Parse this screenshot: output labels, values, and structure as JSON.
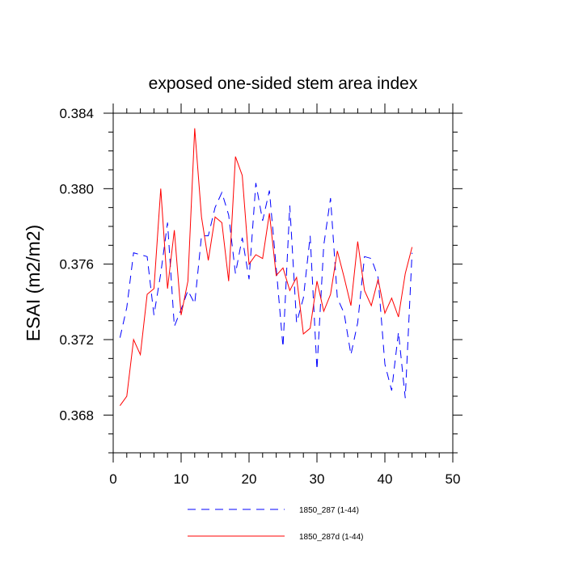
{
  "chart_data": {
    "type": "line",
    "title": "exposed one-sided stem area index",
    "xlabel": "",
    "ylabel": "ESAI  (m2/m2)",
    "xlim": [
      0,
      50
    ],
    "ylim": [
      0.366,
      0.384
    ],
    "xticks": [
      0,
      10,
      20,
      30,
      40,
      50
    ],
    "xtick_labels": [
      "0",
      "10",
      "20",
      "30",
      "40",
      "50"
    ],
    "yticks": [
      0.368,
      0.372,
      0.376,
      0.38,
      0.384
    ],
    "ytick_labels": [
      "0.368",
      "0.372",
      "0.376",
      "0.380",
      "0.384"
    ],
    "legend_position": "bottom",
    "series": [
      {
        "name": "1850_287 (1-44)",
        "color": "#0000ff",
        "style": "dashed",
        "x": [
          1,
          2,
          3,
          4,
          5,
          6,
          7,
          8,
          9,
          10,
          11,
          12,
          13,
          14,
          15,
          16,
          17,
          18,
          19,
          20,
          21,
          22,
          23,
          24,
          25,
          26,
          27,
          28,
          29,
          30,
          31,
          32,
          33,
          34,
          35,
          36,
          37,
          38,
          39,
          40,
          41,
          42,
          43,
          44
        ],
        "values": [
          0.3721,
          0.3737,
          0.3766,
          0.3765,
          0.3764,
          0.3733,
          0.3755,
          0.3782,
          0.3727,
          0.3736,
          0.3746,
          0.3739,
          0.3775,
          0.3775,
          0.379,
          0.3798,
          0.3786,
          0.3755,
          0.3774,
          0.3752,
          0.3803,
          0.3783,
          0.3799,
          0.3758,
          0.3716,
          0.3791,
          0.3729,
          0.3742,
          0.3775,
          0.3704,
          0.377,
          0.3795,
          0.3742,
          0.3734,
          0.3712,
          0.3729,
          0.3764,
          0.3763,
          0.3753,
          0.3707,
          0.3693,
          0.3724,
          0.3689,
          0.3766
        ]
      },
      {
        "name": "1850_287d (1-44)",
        "color": "#ff0000",
        "style": "solid",
        "x": [
          1,
          2,
          3,
          4,
          5,
          6,
          7,
          8,
          9,
          10,
          11,
          12,
          13,
          14,
          15,
          16,
          17,
          18,
          19,
          20,
          21,
          22,
          23,
          24,
          25,
          26,
          27,
          28,
          29,
          30,
          31,
          32,
          33,
          34,
          35,
          36,
          37,
          38,
          39,
          40,
          41,
          42,
          43,
          44
        ],
        "values": [
          0.3685,
          0.369,
          0.372,
          0.3712,
          0.3744,
          0.3747,
          0.38,
          0.3747,
          0.3778,
          0.3733,
          0.3751,
          0.3832,
          0.3785,
          0.3762,
          0.3785,
          0.3782,
          0.3751,
          0.3817,
          0.3807,
          0.376,
          0.3765,
          0.3763,
          0.3787,
          0.3754,
          0.3758,
          0.3746,
          0.3753,
          0.3723,
          0.3726,
          0.3751,
          0.3735,
          0.3744,
          0.3767,
          0.3753,
          0.3738,
          0.3772,
          0.3746,
          0.3738,
          0.3752,
          0.3734,
          0.3742,
          0.3732,
          0.3755,
          0.3769
        ]
      }
    ]
  }
}
